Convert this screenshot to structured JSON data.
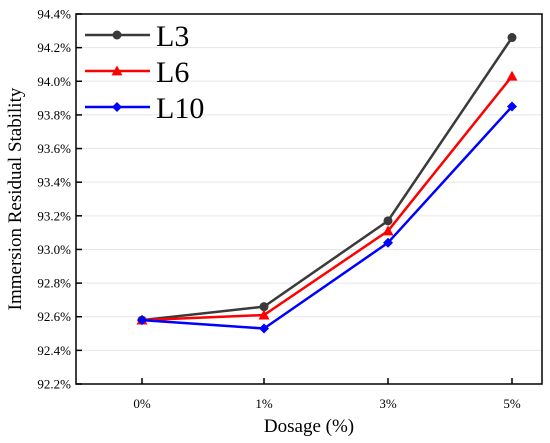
{
  "chart_data": {
    "type": "line",
    "xlabel": "Dosage (%)",
    "ylabel": "Immersion Residual Stability",
    "categories": [
      "0%",
      "1%",
      "3%",
      "5%"
    ],
    "ylim": [
      92.2,
      94.4
    ],
    "yticks": [
      92.2,
      92.4,
      92.6,
      92.8,
      93.0,
      93.2,
      93.4,
      93.6,
      93.8,
      94.0,
      94.2,
      94.4
    ],
    "ytick_labels": [
      "92.2%",
      "92.4%",
      "92.6%",
      "92.8%",
      "93.0%",
      "93.2%",
      "93.4%",
      "93.6%",
      "93.8%",
      "94.0%",
      "94.2%",
      "94.4%"
    ],
    "grid": true,
    "legend_position": "top-left",
    "series": [
      {
        "name": "L3",
        "values": [
          92.58,
          92.66,
          93.17,
          94.26
        ],
        "color": "#3a3a3a",
        "marker": "circle"
      },
      {
        "name": "L6",
        "values": [
          92.58,
          92.61,
          93.11,
          94.03
        ],
        "color": "#ff0000",
        "marker": "triangle"
      },
      {
        "name": "L10",
        "values": [
          92.58,
          92.53,
          93.04,
          93.85
        ],
        "color": "#0000ff",
        "marker": "diamond"
      }
    ]
  }
}
